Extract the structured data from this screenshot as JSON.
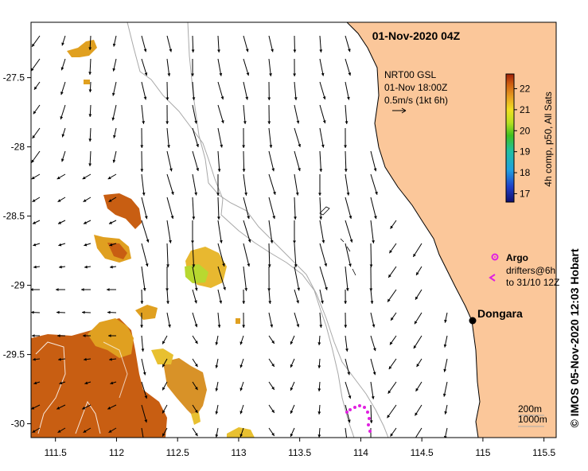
{
  "map": {
    "title": "01-Nov-2020 04Z",
    "longitude_ticks": [
      "111.5",
      "112",
      "112.5",
      "113",
      "113.5",
      "114",
      "114.5",
      "115",
      "115.5"
    ],
    "latitude_ticks": [
      "-27.5",
      "-28",
      "-28.5",
      "-29",
      "-29.5",
      "-30"
    ],
    "longitude_values": [
      111.5,
      112,
      112.5,
      113,
      113.5,
      114,
      114.5,
      115,
      115.5
    ],
    "latitude_values": [
      -27.5,
      -28,
      -28.5,
      -29,
      -29.5,
      -30
    ],
    "lon_range": [
      111.3,
      115.6
    ],
    "lat_range": [
      -30.1,
      -27.1
    ]
  },
  "current_legend": {
    "source": "NRT00 GSL",
    "time": "01-Nov 18:00Z",
    "scale": "0.5m/s (1kt 6h)"
  },
  "colorbar": {
    "label": "4h comp, p50, All Sats",
    "ticks": [
      "17",
      "18",
      "19",
      "20",
      "21",
      "22"
    ],
    "tick_values": [
      17,
      18,
      19,
      20,
      21,
      22
    ],
    "range": [
      16.6,
      22.7
    ]
  },
  "argo_legend": {
    "label": "Argo"
  },
  "drifter_legend": {
    "line1": "drifters@6h",
    "line2": "to 31/10 12Z"
  },
  "place": {
    "name": "Dongara",
    "lon": 114.93,
    "lat": -29.25
  },
  "contour_legend": {
    "line1": "200m",
    "line2": "1000m"
  },
  "credit": "© IMOS 05-Nov-2020 12:03 Hobart",
  "colors": {
    "land": "#fbc79a",
    "sst_warm": "#c85e12",
    "sst_mid": "#e0a020",
    "sst_cool": "#b8d830",
    "argo": "#e020e0"
  }
}
